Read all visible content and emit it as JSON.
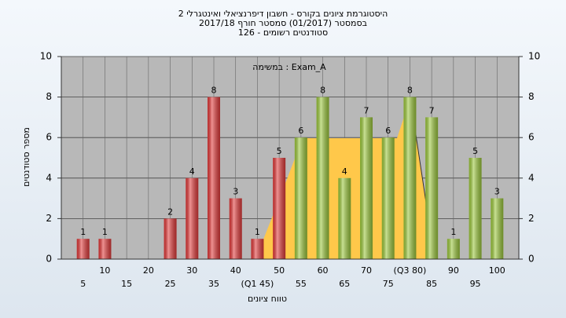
{
  "chart_data": {
    "type": "bar",
    "title": "היסטוגרמת ציונים בקורס - חשבון דיפרנציאלי ואינטגרלי 2",
    "subtitle": "בסמסטר (01/2017) סמסטר חורף 2017/18",
    "subtitle2": "126 - סטודנטים רשומים",
    "annotation": "במשימה : Exam_A",
    "ylabel": "מספר סטודנטים",
    "xlabel": "טווח ציונים",
    "categories": [
      "5",
      "10",
      "15",
      "20",
      "25",
      "30",
      "35",
      "40",
      "(Q1 45)",
      "50",
      "55",
      "60",
      "65",
      "70",
      "75",
      "(Q3 80)",
      "85",
      "90",
      "95",
      "100"
    ],
    "values": [
      1,
      1,
      0,
      0,
      2,
      4,
      8,
      3,
      1,
      5,
      6,
      8,
      4,
      7,
      6,
      8,
      7,
      1,
      5,
      3
    ],
    "colors": [
      "#e23a3a",
      "#e23a3a",
      "#e23a3a",
      "#e23a3a",
      "#e23a3a",
      "#e23a3a",
      "#e23a3a",
      "#e23a3a",
      "#e23a3a",
      "#e23a3a",
      "#9cc83c",
      "#9cc83c",
      "#9cc83c",
      "#9cc83c",
      "#9cc83c",
      "#9cc83c",
      "#9cc83c",
      "#9cc83c",
      "#9cc83c",
      "#9cc83c"
    ],
    "ylim": [
      0,
      10
    ],
    "yticks": [
      0,
      2,
      4,
      6,
      8,
      10
    ],
    "y2lim": [
      0,
      10
    ],
    "y2ticks": [
      0,
      2,
      4,
      6,
      8,
      10
    ],
    "grid": true
  }
}
